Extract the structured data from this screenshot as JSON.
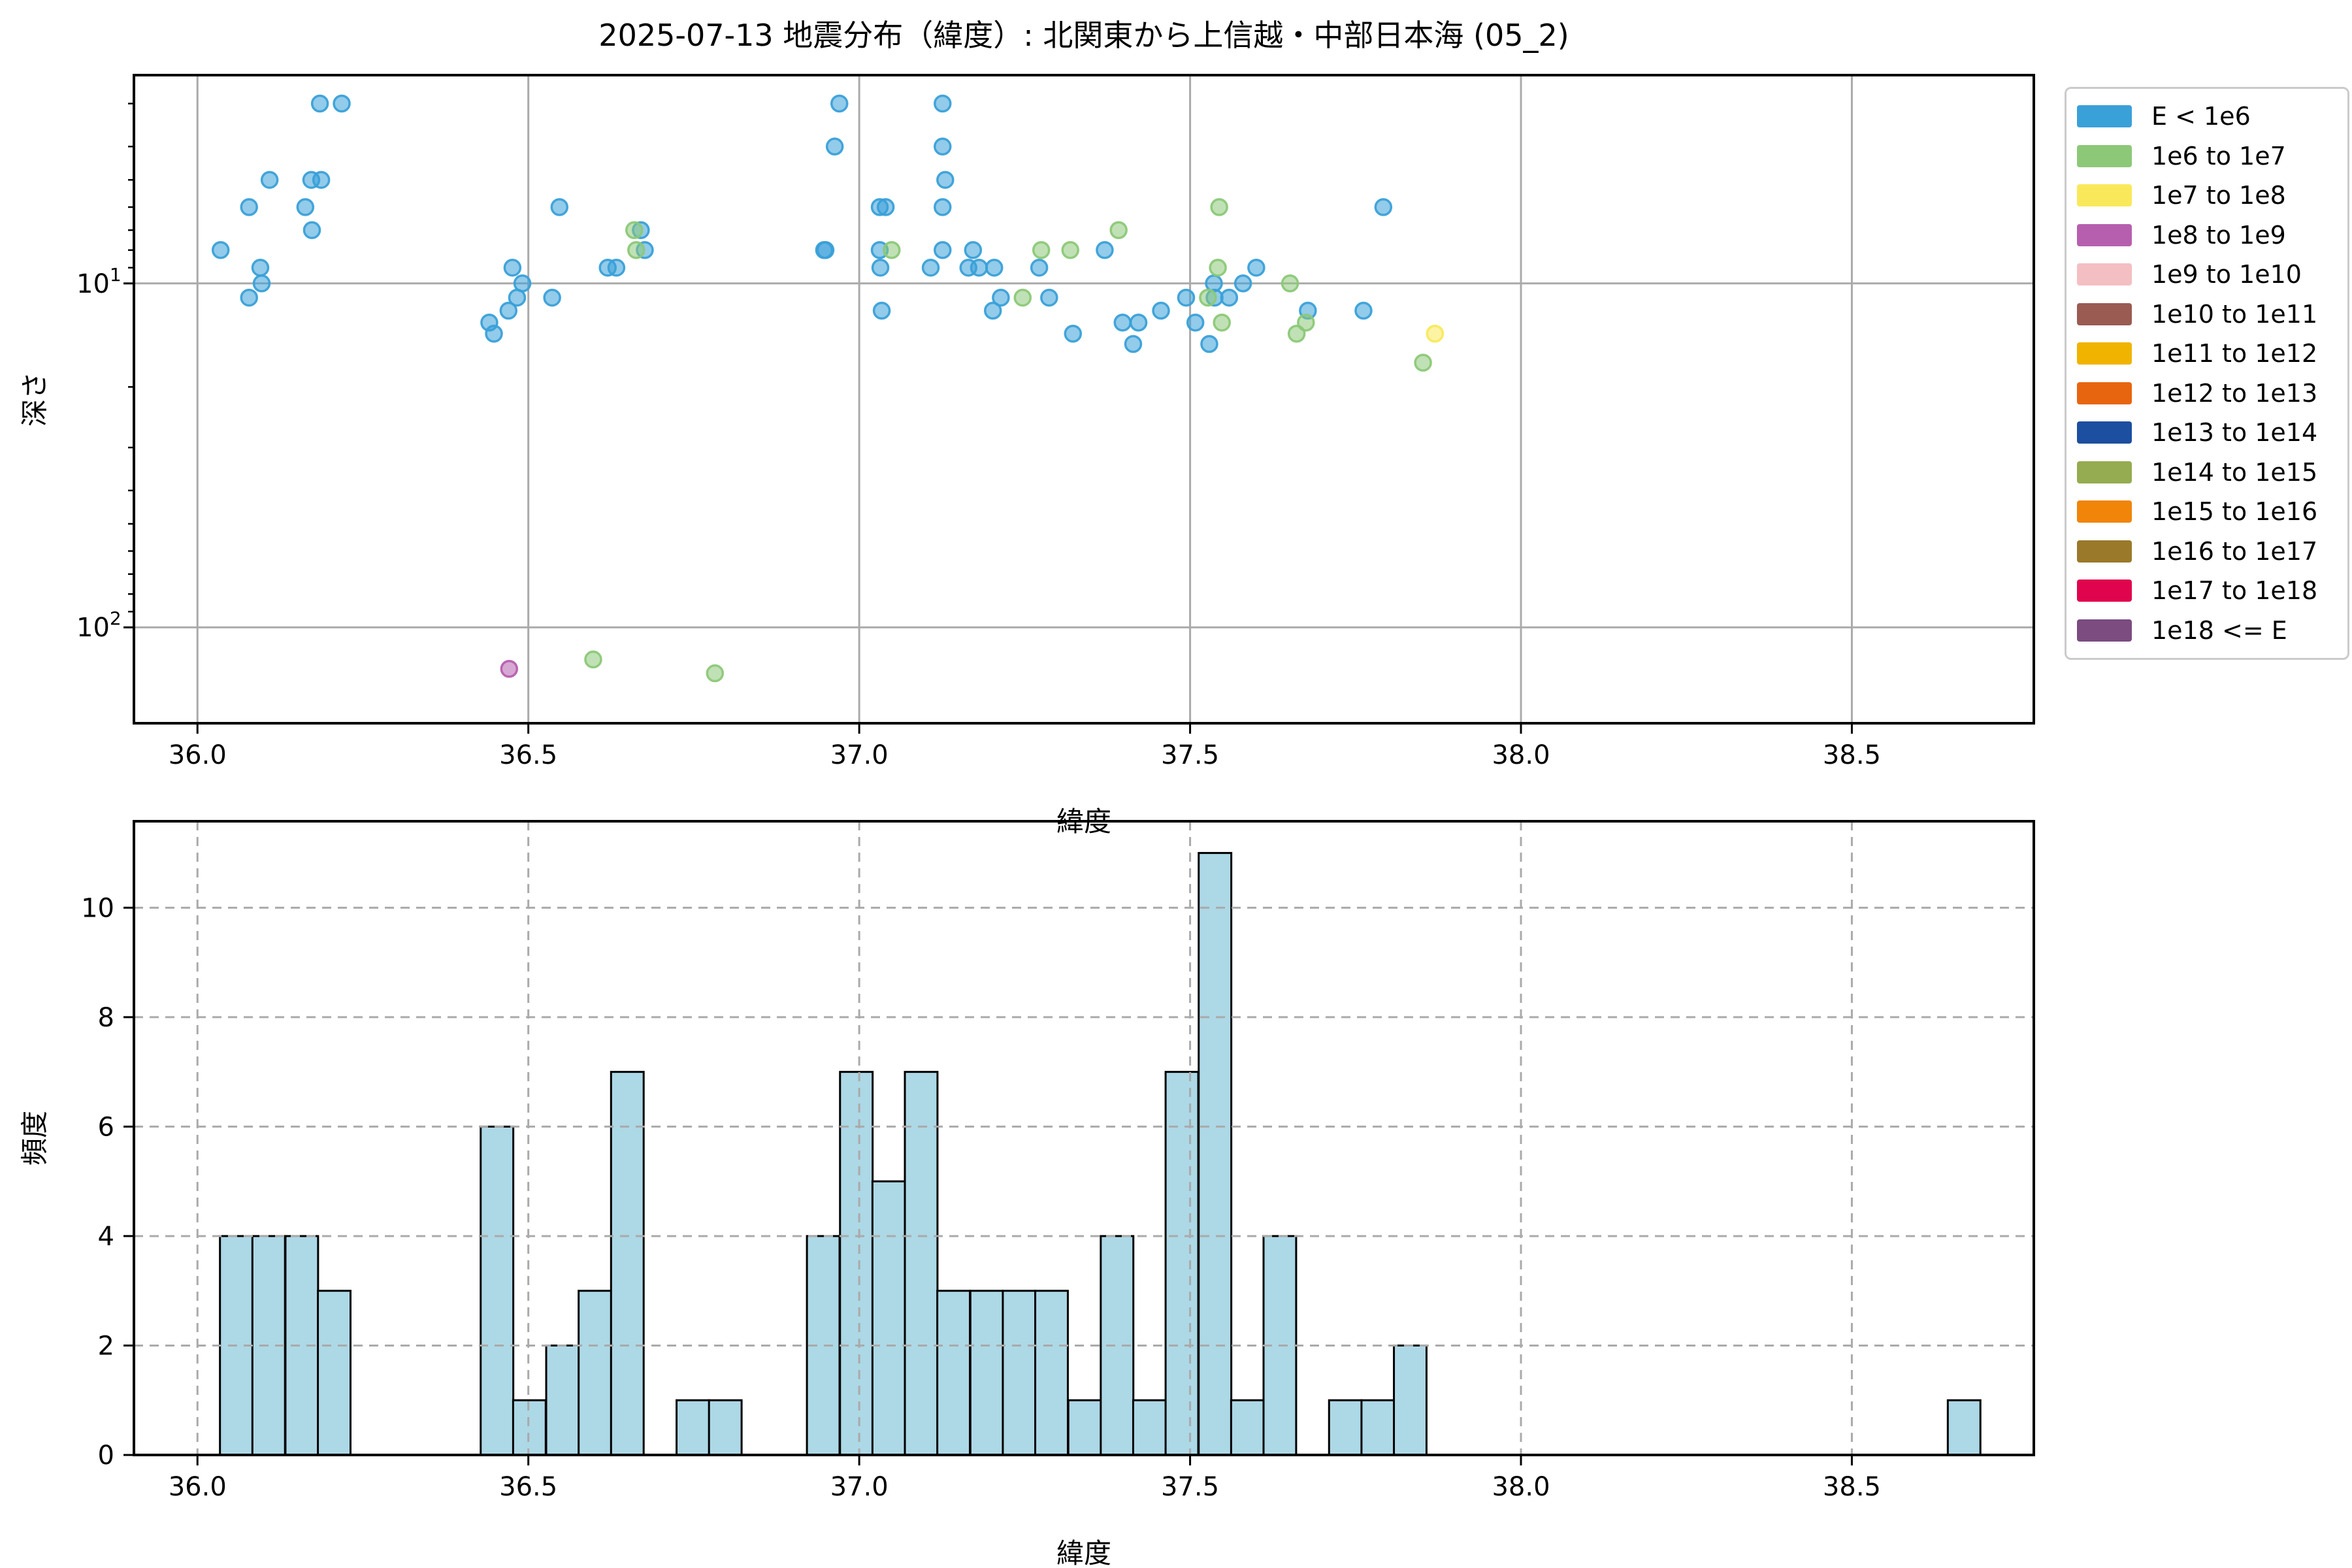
{
  "figure": {
    "title": "2025-07-13 地震分布（緯度）: 北関東から上信越・中部日本海 (05_2)",
    "background": "#ffffff"
  },
  "legend": {
    "entries": [
      {
        "label": "E < 1e6",
        "color": "#3AA0D8"
      },
      {
        "label": "1e6 to 1e7",
        "color": "#8CC878"
      },
      {
        "label": "1e7 to 1e8",
        "color": "#F9E95A"
      },
      {
        "label": "1e8 to 1e9",
        "color": "#B75FAF"
      },
      {
        "label": "1e9 to 1e10",
        "color": "#F4BFC2"
      },
      {
        "label": "1e10 to 1e11",
        "color": "#9A5B52"
      },
      {
        "label": "1e11 to 1e12",
        "color": "#F0B400"
      },
      {
        "label": "1e12 to 1e13",
        "color": "#E8650F"
      },
      {
        "label": "1e13 to 1e14",
        "color": "#1D4FA0"
      },
      {
        "label": "1e14 to 1e15",
        "color": "#96AC50"
      },
      {
        "label": "1e15 to 1e16",
        "color": "#F0850A"
      },
      {
        "label": "1e16 to 1e17",
        "color": "#9A7A2A"
      },
      {
        "label": "1e17 to 1e18",
        "color": "#E0044E"
      },
      {
        "label": "1e18 <= E",
        "color": "#7C4B80"
      }
    ]
  },
  "chart_data": [
    {
      "type": "scatter",
      "xlabel": "緯度",
      "ylabel": "深さ",
      "xlim": [
        35.904,
        38.775
      ],
      "x_ticks": [
        36.0,
        36.5,
        37.0,
        37.5,
        38.0,
        38.5
      ],
      "yscale": "log",
      "y_inverted": true,
      "ylim": [
        2.48,
        190
      ],
      "y_ticks": [
        10,
        100
      ],
      "y_minor_ticks": [
        3,
        4,
        5,
        6,
        7,
        8,
        9,
        20,
        30,
        40,
        50,
        60,
        70,
        80,
        90
      ],
      "grid": "solid",
      "series": [
        {
          "name": "E < 1e6",
          "color": "#3AA0D8",
          "points": [
            [
              36.035,
              8
            ],
            [
              36.078,
              6
            ],
            [
              36.078,
              11
            ],
            [
              36.095,
              9
            ],
            [
              36.097,
              10
            ],
            [
              36.109,
              5
            ],
            [
              36.163,
              6
            ],
            [
              36.172,
              5
            ],
            [
              36.173,
              7
            ],
            [
              36.185,
              3
            ],
            [
              36.187,
              5
            ],
            [
              36.218,
              3
            ],
            [
              36.441,
              13
            ],
            [
              36.448,
              14
            ],
            [
              36.47,
              12
            ],
            [
              36.476,
              9
            ],
            [
              36.483,
              11
            ],
            [
              36.491,
              10
            ],
            [
              36.536,
              11
            ],
            [
              36.547,
              6
            ],
            [
              36.62,
              9
            ],
            [
              36.633,
              9
            ],
            [
              36.67,
              7
            ],
            [
              36.676,
              8
            ],
            [
              36.947,
              8
            ],
            [
              36.949,
              8
            ],
            [
              36.963,
              4
            ],
            [
              36.97,
              3
            ],
            [
              37.031,
              6
            ],
            [
              37.04,
              6
            ],
            [
              37.031,
              8
            ],
            [
              37.032,
              9
            ],
            [
              37.034,
              12
            ],
            [
              37.108,
              9
            ],
            [
              37.126,
              3
            ],
            [
              37.126,
              4
            ],
            [
              37.13,
              5
            ],
            [
              37.126,
              6
            ],
            [
              37.126,
              8
            ],
            [
              37.165,
              9
            ],
            [
              37.172,
              8
            ],
            [
              37.181,
              9
            ],
            [
              37.204,
              9
            ],
            [
              37.202,
              12
            ],
            [
              37.214,
              11
            ],
            [
              37.272,
              9
            ],
            [
              37.287,
              11
            ],
            [
              37.323,
              14
            ],
            [
              37.371,
              8
            ],
            [
              37.398,
              13
            ],
            [
              37.414,
              15
            ],
            [
              37.422,
              13
            ],
            [
              37.456,
              12
            ],
            [
              37.494,
              11
            ],
            [
              37.508,
              13
            ],
            [
              37.529,
              15
            ],
            [
              37.536,
              10
            ],
            [
              37.537,
              11
            ],
            [
              37.559,
              11
            ],
            [
              37.58,
              10
            ],
            [
              37.6,
              9
            ],
            [
              37.678,
              12
            ],
            [
              37.762,
              12
            ],
            [
              37.792,
              6
            ]
          ]
        },
        {
          "name": "1e6 to 1e7",
          "color": "#8CC878",
          "points": [
            [
              36.598,
              124
            ],
            [
              36.66,
              7
            ],
            [
              36.663,
              8
            ],
            [
              36.782,
              136
            ],
            [
              37.049,
              8
            ],
            [
              37.247,
              11
            ],
            [
              37.275,
              8
            ],
            [
              37.319,
              8
            ],
            [
              37.392,
              7
            ],
            [
              37.527,
              11
            ],
            [
              37.542,
              9
            ],
            [
              37.544,
              6
            ],
            [
              37.548,
              13
            ],
            [
              37.651,
              10
            ],
            [
              37.661,
              14
            ],
            [
              37.675,
              13
            ],
            [
              37.852,
              17
            ]
          ]
        },
        {
          "name": "1e7 to 1e8",
          "color": "#F9E95A",
          "points": [
            [
              37.87,
              14
            ]
          ]
        },
        {
          "name": "1e8 to 1e9",
          "color": "#B75FAF",
          "points": [
            [
              36.471,
              132
            ]
          ]
        }
      ]
    },
    {
      "type": "bar",
      "xlabel": "緯度",
      "ylabel": "頻度",
      "xlim": [
        35.904,
        38.775
      ],
      "x_ticks": [
        36.0,
        36.5,
        37.0,
        37.5,
        38.0,
        38.5
      ],
      "ylim": [
        0,
        11.58
      ],
      "y_ticks": [
        0,
        2,
        4,
        6,
        8,
        10
      ],
      "grid": "dashed",
      "bar_color": "#ADD8E6",
      "bar_edge": "#000000",
      "bin_width": 0.04927,
      "bars": [
        {
          "x": 36.034,
          "count": 4
        },
        {
          "x": 36.083,
          "count": 4
        },
        {
          "x": 36.133,
          "count": 4
        },
        {
          "x": 36.182,
          "count": 3
        },
        {
          "x": 36.428,
          "count": 6
        },
        {
          "x": 36.477,
          "count": 1
        },
        {
          "x": 36.527,
          "count": 2
        },
        {
          "x": 36.576,
          "count": 3
        },
        {
          "x": 36.625,
          "count": 7
        },
        {
          "x": 36.724,
          "count": 1
        },
        {
          "x": 36.773,
          "count": 1
        },
        {
          "x": 36.921,
          "count": 4
        },
        {
          "x": 36.971,
          "count": 7
        },
        {
          "x": 37.02,
          "count": 5
        },
        {
          "x": 37.069,
          "count": 7
        },
        {
          "x": 37.118,
          "count": 3
        },
        {
          "x": 37.168,
          "count": 3
        },
        {
          "x": 37.217,
          "count": 3
        },
        {
          "x": 37.266,
          "count": 3
        },
        {
          "x": 37.316,
          "count": 1
        },
        {
          "x": 37.365,
          "count": 4
        },
        {
          "x": 37.414,
          "count": 1
        },
        {
          "x": 37.463,
          "count": 7
        },
        {
          "x": 37.513,
          "count": 11
        },
        {
          "x": 37.562,
          "count": 1
        },
        {
          "x": 37.611,
          "count": 4
        },
        {
          "x": 37.71,
          "count": 1
        },
        {
          "x": 37.759,
          "count": 1
        },
        {
          "x": 37.808,
          "count": 2
        },
        {
          "x": 38.645,
          "count": 1
        }
      ]
    }
  ]
}
